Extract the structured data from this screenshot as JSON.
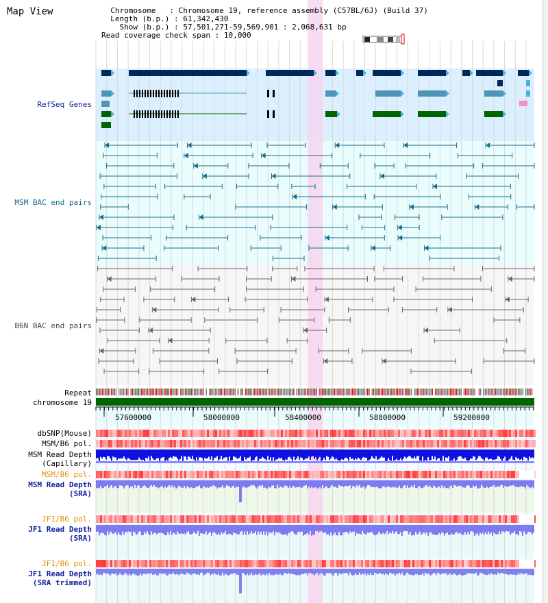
{
  "title": "Map View",
  "info": {
    "chromosome_key": "Chromosome",
    "chromosome_val": "Chromosome 19, reference assembly (C57BL/6J) (Build 37)",
    "length_key": "Length (b.p.)",
    "length_val": "61,342,430",
    "show_key": "Show (b.p.)",
    "show_val": "57,501,271-59,569,901 : 2,068,631 bp",
    "coverage_key": "Read coverage check span",
    "coverage_val": "10,000"
  },
  "tracks": {
    "refseq": "RefSeq Genes",
    "msm_bac": "MSM BAC end pairs",
    "b6n_bac": "B6N BAC end pairs",
    "repeat": "Repeat",
    "chromosome": "chromosome 19",
    "dbsnp": "dbSNP(Mouse)",
    "msm_b6_pol": "MSM/B6 pol.",
    "msm_depth_cap_1": "MSM Read Depth",
    "msm_depth_cap_2": "(Capillary)",
    "msm_b6_pol2": "MSM/B6 pol.",
    "msm_depth_sra_1": "MSM Read Depth",
    "msm_depth_sra_2": "(SRA)",
    "jf1_b6_pol": "JF1/B6 pol.",
    "jf1_depth_sra_1": "JF1 Read Depth",
    "jf1_depth_sra_2": "(SRA)",
    "jf1_b6_pol2": "JF1/B6 pol.",
    "jf1_depth_trim_1": "JF1 Read Depth",
    "jf1_depth_trim_2": "(SRA trimmed)"
  },
  "ruler": [
    "57600000",
    "58000000",
    "58400000",
    "58800000",
    "59200000"
  ],
  "colors": {
    "refseq_bg": "#dcefff",
    "bac_bg": "#eafdfd",
    "b6n_bg": "#f6f6f6",
    "highlight": "#f7d6f0",
    "navy": "#00285a",
    "teal": "#4f94b4",
    "green": "#006400",
    "chrom": "#006400",
    "pol_red": "#e84040",
    "depth_blue": "#1010e0",
    "depth_light": "#7c7cf0",
    "orange_lbl": "#e09000",
    "blue_lbl": "#1020a0"
  }
}
